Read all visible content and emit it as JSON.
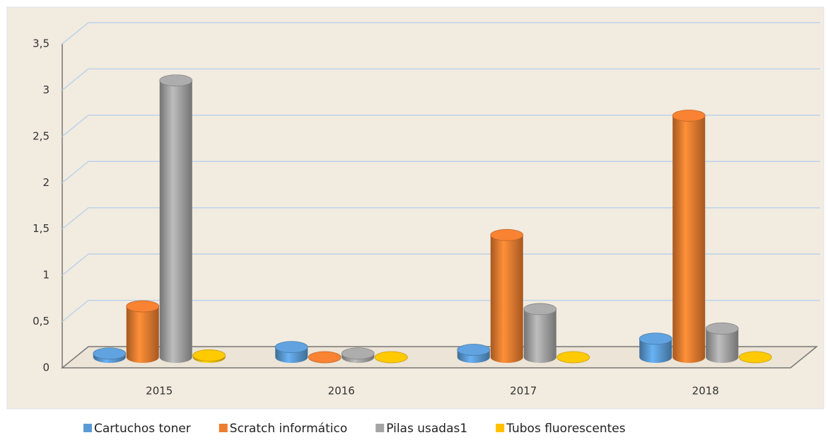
{
  "chart_data": {
    "type": "bar3d",
    "categories": [
      "2015",
      "2016",
      "2017",
      "2018"
    ],
    "series": [
      {
        "name": "Cartuchos toner",
        "color": "#5b9bd5",
        "values": [
          0.04,
          0.11,
          0.08,
          0.2
        ]
      },
      {
        "name": "Scratch informático",
        "color": "#ed7d31",
        "values": [
          0.55,
          0,
          1.32,
          2.61
        ]
      },
      {
        "name": "Pilas usadas1",
        "color": "#a5a5a5",
        "values": [
          2.99,
          0.04,
          0.52,
          0.31
        ]
      },
      {
        "name": "Tubos fluorescentes",
        "color": "#ffc000",
        "values": [
          0.02,
          0,
          0,
          0
        ]
      }
    ],
    "ylim": [
      0,
      3.5
    ],
    "yticks": [
      0,
      {
        "value": 0.5,
        "label": "0,5"
      },
      1,
      {
        "value": 1.5,
        "label": "1,5"
      },
      2,
      {
        "value": 2.5,
        "label": "2,5"
      },
      3,
      {
        "value": 3.5,
        "label": "3,5"
      }
    ],
    "grid": true,
    "legend": "bottom"
  }
}
